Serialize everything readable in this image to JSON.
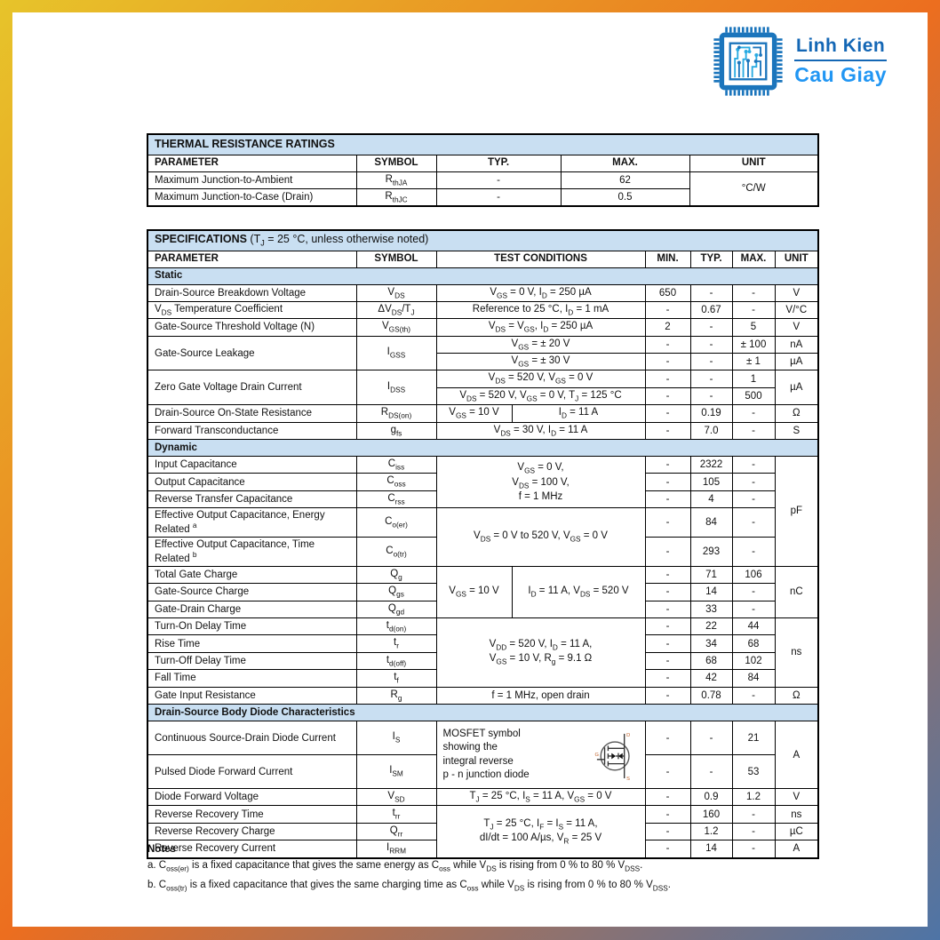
{
  "colors": {
    "band": "#c9dff2",
    "border": "#000000",
    "text": "#111111",
    "grad_start": "#e7c42a",
    "grad_mid": "#ec6e1f",
    "grad_end": "#4e74a6",
    "logo_dark_blue": "#1b75bc",
    "logo_light_blue": "#29abe2",
    "logo_text_top": "#1467b5",
    "logo_text_bottom": "#2196f3"
  },
  "logo": {
    "line1": "Linh Kien",
    "line2": "Cau Giay",
    "icon": "chip-circuit-icon"
  },
  "thermal_table": {
    "rows": [
      {
        "cls": "title-row",
        "cells": [
          {
            "t": "**THERMAL RESISTANCE RATINGS**",
            "cs": 5,
            "al": "l"
          }
        ]
      },
      {
        "cls": "head-row",
        "cells": [
          {
            "t": "PARAMETER",
            "al": "l"
          },
          {
            "t": "SYMBOL"
          },
          {
            "t": "TYP."
          },
          {
            "t": "MAX."
          },
          {
            "t": "UNIT"
          }
        ]
      },
      {
        "cells": [
          {
            "t": "Maximum Junction-to-Ambient",
            "al": "l"
          },
          {
            "t": "R~thJA~"
          },
          {
            "t": "-"
          },
          {
            "t": "62"
          },
          {
            "t": "°C/W",
            "rs": 2
          }
        ]
      },
      {
        "cells": [
          {
            "t": "Maximum Junction-to-Case (Drain)",
            "al": "l"
          },
          {
            "t": "R~thJC~"
          },
          {
            "t": "-"
          },
          {
            "t": "0.5"
          }
        ]
      }
    ]
  },
  "spec_table": {
    "rows": [
      {
        "cls": "title-row",
        "cells": [
          {
            "t": "**SPECIFICATIONS** (T~J~ = 25 °C, unless otherwise noted)",
            "cs": 8,
            "al": "l"
          }
        ]
      },
      {
        "cls": "head-row",
        "cells": [
          {
            "t": "PARAMETER",
            "al": "l"
          },
          {
            "t": "SYMBOL"
          },
          {
            "t": "TEST CONDITIONS",
            "cs": 2
          },
          {
            "t": "MIN."
          },
          {
            "t": "TYP."
          },
          {
            "t": "MAX."
          },
          {
            "t": "UNIT"
          }
        ]
      },
      {
        "cls": "section-row",
        "cells": [
          {
            "t": "Static",
            "cs": 8,
            "al": "l"
          }
        ]
      },
      {
        "cells": [
          {
            "t": "Drain-Source Breakdown Voltage",
            "al": "l"
          },
          {
            "t": "V~DS~"
          },
          {
            "t": "V~GS~ = 0 V, I~D~ = 250 µA",
            "cs": 2
          },
          {
            "t": "650"
          },
          {
            "t": "-"
          },
          {
            "t": "-"
          },
          {
            "t": "V"
          }
        ]
      },
      {
        "cells": [
          {
            "t": "V~DS~ Temperature Coefficient",
            "al": "l"
          },
          {
            "t": "ΔV~DS~/T~J~"
          },
          {
            "t": "Reference to 25 °C, I~D~ = 1 mA",
            "cs": 2
          },
          {
            "t": "-"
          },
          {
            "t": "0.67"
          },
          {
            "t": "-"
          },
          {
            "t": "V/°C"
          }
        ]
      },
      {
        "cells": [
          {
            "t": "Gate-Source Threshold Voltage (N)",
            "al": "l"
          },
          {
            "t": "V~GS(th)~"
          },
          {
            "t": "V~DS~ = V~GS~, I~D~ = 250 µA",
            "cs": 2
          },
          {
            "t": "2"
          },
          {
            "t": "-"
          },
          {
            "t": "5"
          },
          {
            "t": "V"
          }
        ]
      },
      {
        "cells": [
          {
            "t": "Gate-Source Leakage",
            "al": "l",
            "rs": 2
          },
          {
            "t": "I~GSS~",
            "rs": 2
          },
          {
            "t": "V~GS~ = ± 20 V",
            "cs": 2
          },
          {
            "t": "-"
          },
          {
            "t": "-"
          },
          {
            "t": "± 100"
          },
          {
            "t": "nA"
          }
        ]
      },
      {
        "cells": [
          {
            "t": "V~GS~ = ± 30 V",
            "cs": 2
          },
          {
            "t": "-"
          },
          {
            "t": "-"
          },
          {
            "t": "± 1"
          },
          {
            "t": "µA"
          }
        ]
      },
      {
        "cells": [
          {
            "t": "Zero Gate Voltage Drain Current",
            "al": "l",
            "rs": 2
          },
          {
            "t": "I~DSS~",
            "rs": 2
          },
          {
            "t": "V~DS~ = 520 V, V~GS~ = 0 V",
            "cs": 2
          },
          {
            "t": "-"
          },
          {
            "t": "-"
          },
          {
            "t": "1"
          },
          {
            "t": "µA",
            "rs": 2
          }
        ]
      },
      {
        "cells": [
          {
            "t": "V~DS~ = 520 V, V~GS~ = 0 V, T~J~ = 125 °C",
            "cs": 2
          },
          {
            "t": "-"
          },
          {
            "t": "-"
          },
          {
            "t": "500"
          }
        ]
      },
      {
        "cells": [
          {
            "t": "Drain-Source On-State Resistance",
            "al": "l"
          },
          {
            "t": "R~DS(on)~"
          },
          {
            "t": "V~GS~ = 10 V"
          },
          {
            "t": "I~D~ = 11 A"
          },
          {
            "t": "-"
          },
          {
            "t": "0.19"
          },
          {
            "t": "-"
          },
          {
            "t": "Ω"
          }
        ]
      },
      {
        "cells": [
          {
            "t": "Forward Transconductance",
            "al": "l"
          },
          {
            "t": "g~fs~"
          },
          {
            "t": "V~DS~ = 30 V, I~D~ = 11 A",
            "cs": 2
          },
          {
            "t": "-"
          },
          {
            "t": "7.0"
          },
          {
            "t": "-"
          },
          {
            "t": "S"
          }
        ]
      },
      {
        "cls": "section-row",
        "cells": [
          {
            "t": "Dynamic",
            "cs": 8,
            "al": "l"
          }
        ]
      },
      {
        "cells": [
          {
            "t": "Input Capacitance",
            "al": "l"
          },
          {
            "t": "C~iss~"
          },
          {
            "t": "V~GS~ = 0 V,\nV~DS~ = 100 V,\nf = 1 MHz",
            "cs": 2,
            "rs": 3
          },
          {
            "t": "-"
          },
          {
            "t": "2322"
          },
          {
            "t": "-"
          },
          {
            "t": "pF",
            "rs": 5
          }
        ]
      },
      {
        "cells": [
          {
            "t": "Output Capacitance",
            "al": "l"
          },
          {
            "t": "C~oss~"
          },
          {
            "t": "-"
          },
          {
            "t": "105"
          },
          {
            "t": "-"
          }
        ]
      },
      {
        "cells": [
          {
            "t": "Reverse Transfer Capacitance",
            "al": "l"
          },
          {
            "t": "C~rss~"
          },
          {
            "t": "-"
          },
          {
            "t": "4"
          },
          {
            "t": "-"
          }
        ]
      },
      {
        "cells": [
          {
            "t": "Effective Output Capacitance, Energy Related ^a^",
            "al": "l"
          },
          {
            "t": "C~o(er)~"
          },
          {
            "t": "V~DS~ = 0 V to 520 V, V~GS~ = 0 V",
            "cs": 2,
            "rs": 2
          },
          {
            "t": "-"
          },
          {
            "t": "84"
          },
          {
            "t": "-"
          }
        ]
      },
      {
        "cells": [
          {
            "t": "Effective Output Capacitance, Time Related ^b^",
            "al": "l"
          },
          {
            "t": "C~o(tr)~"
          },
          {
            "t": "-"
          },
          {
            "t": "293"
          },
          {
            "t": "-"
          }
        ]
      },
      {
        "cells": [
          {
            "t": "Total Gate Charge",
            "al": "l"
          },
          {
            "t": "Q~g~"
          },
          {
            "t": "V~GS~ = 10 V",
            "rs": 3
          },
          {
            "t": "I~D~ = 11 A, V~DS~ = 520 V",
            "rs": 3
          },
          {
            "t": "-"
          },
          {
            "t": "71"
          },
          {
            "t": "106"
          },
          {
            "t": "nC",
            "rs": 3
          }
        ]
      },
      {
        "cells": [
          {
            "t": "Gate-Source Charge",
            "al": "l"
          },
          {
            "t": "Q~gs~"
          },
          {
            "t": "-"
          },
          {
            "t": "14"
          },
          {
            "t": "-"
          }
        ]
      },
      {
        "cells": [
          {
            "t": "Gate-Drain Charge",
            "al": "l"
          },
          {
            "t": "Q~gd~"
          },
          {
            "t": "-"
          },
          {
            "t": "33"
          },
          {
            "t": "-"
          }
        ]
      },
      {
        "cells": [
          {
            "t": "Turn-On Delay Time",
            "al": "l"
          },
          {
            "t": "t~d(on)~"
          },
          {
            "t": "V~DD~ = 520 V, I~D~ = 11 A,\nV~GS~ = 10 V, R~g~ = 9.1 Ω",
            "cs": 2,
            "rs": 4
          },
          {
            "t": "-"
          },
          {
            "t": "22"
          },
          {
            "t": "44"
          },
          {
            "t": "ns",
            "rs": 4
          }
        ]
      },
      {
        "cells": [
          {
            "t": "Rise Time",
            "al": "l"
          },
          {
            "t": "t~r~"
          },
          {
            "t": "-"
          },
          {
            "t": "34"
          },
          {
            "t": "68"
          }
        ]
      },
      {
        "cells": [
          {
            "t": "Turn-Off Delay Time",
            "al": "l"
          },
          {
            "t": "t~d(off)~"
          },
          {
            "t": "-"
          },
          {
            "t": "68"
          },
          {
            "t": "102"
          }
        ]
      },
      {
        "cells": [
          {
            "t": "Fall Time",
            "al": "l"
          },
          {
            "t": "t~f~"
          },
          {
            "t": "-"
          },
          {
            "t": "42"
          },
          {
            "t": "84"
          }
        ]
      },
      {
        "cells": [
          {
            "t": "Gate Input Resistance",
            "al": "l"
          },
          {
            "t": "R~g~"
          },
          {
            "t": "f = 1 MHz, open drain",
            "cs": 2
          },
          {
            "t": "-"
          },
          {
            "t": "0.78"
          },
          {
            "t": "-"
          },
          {
            "t": "Ω"
          }
        ]
      },
      {
        "cls": "section-row",
        "cells": [
          {
            "t": "Drain-Source Body Diode Characteristics",
            "cs": 8,
            "al": "l"
          }
        ]
      },
      {
        "h": 38,
        "cells": [
          {
            "t": "Continuous Source-Drain Diode Current",
            "al": "l"
          },
          {
            "t": "I~S~"
          },
          {
            "t": "MOSFET symbol\nshowing the\nintegral reverse\np - n junction diode",
            "kind": "mosfet",
            "cs": 2,
            "rs": 2,
            "al": "l"
          },
          {
            "t": "-"
          },
          {
            "t": "-"
          },
          {
            "t": "21"
          },
          {
            "t": "A",
            "rs": 2
          }
        ]
      },
      {
        "h": 38,
        "cells": [
          {
            "t": "Pulsed Diode Forward Current",
            "al": "l"
          },
          {
            "t": "I~SM~"
          },
          {
            "t": "-"
          },
          {
            "t": "-"
          },
          {
            "t": "53"
          }
        ]
      },
      {
        "cells": [
          {
            "t": "Diode Forward Voltage",
            "al": "l"
          },
          {
            "t": "V~SD~"
          },
          {
            "t": "T~J~ = 25 °C, I~S~ = 11 A, V~GS~ = 0 V",
            "cs": 2
          },
          {
            "t": "-"
          },
          {
            "t": "0.9"
          },
          {
            "t": "1.2"
          },
          {
            "t": "V"
          }
        ]
      },
      {
        "cells": [
          {
            "t": "Reverse Recovery Time",
            "al": "l"
          },
          {
            "t": "t~rr~"
          },
          {
            "t": "T~J~ = 25 °C, I~F~ = I~S~ = 11 A,\ndI/dt = 100 A/µs, V~R~ = 25 V",
            "cs": 2,
            "rs": 3
          },
          {
            "t": "-"
          },
          {
            "t": "160"
          },
          {
            "t": "-"
          },
          {
            "t": "ns"
          }
        ]
      },
      {
        "cells": [
          {
            "t": "Reverse Recovery Charge",
            "al": "l"
          },
          {
            "t": "Q~rr~"
          },
          {
            "t": "-"
          },
          {
            "t": "1.2"
          },
          {
            "t": "-"
          },
          {
            "t": "µC"
          }
        ]
      },
      {
        "cells": [
          {
            "t": "Reverse Recovery Current",
            "al": "l"
          },
          {
            "t": "I~RRM~"
          },
          {
            "t": "-"
          },
          {
            "t": "14"
          },
          {
            "t": "-"
          },
          {
            "t": "A"
          }
        ]
      }
    ]
  },
  "notes": {
    "title": "Notes",
    "items": [
      "a.   C~oss(er)~ is a fixed capacitance that gives the same energy as C~oss~ while V~DS~ is rising from 0 % to 80 % V~DSS~.",
      "b.   C~oss(tr)~ is a fixed capacitance that gives the same charging time as C~oss~ while V~DS~ is rising from 0 % to 80 % V~DSS~."
    ]
  }
}
